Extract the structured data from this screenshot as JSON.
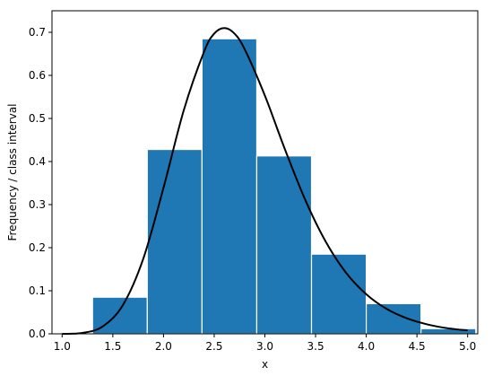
{
  "chart_data": {
    "type": "bar",
    "title": "",
    "xlabel": "x",
    "ylabel": "Frequency / class interval",
    "xlim": [
      0.9,
      5.1
    ],
    "ylim": [
      0.0,
      0.75
    ],
    "grid": false,
    "bar_color": "#1f77b4",
    "bar_edge_color": "#ffffff",
    "curve_color": "#000000",
    "xticks": [
      1.0,
      1.5,
      2.0,
      2.5,
      3.0,
      3.5,
      4.0,
      4.5,
      5.0
    ],
    "xtick_labels": [
      "1.0",
      "1.5",
      "2.0",
      "2.5",
      "3.0",
      "3.5",
      "4.0",
      "4.5",
      "5.0"
    ],
    "yticks": [
      0.0,
      0.1,
      0.2,
      0.3,
      0.4,
      0.5,
      0.6,
      0.7
    ],
    "ytick_labels": [
      "0.0",
      "0.1",
      "0.2",
      "0.3",
      "0.4",
      "0.5",
      "0.6",
      "0.7"
    ],
    "bins": [
      {
        "x0": 1.3,
        "x1": 1.84,
        "value": 0.085
      },
      {
        "x0": 1.84,
        "x1": 2.38,
        "value": 0.428
      },
      {
        "x0": 2.38,
        "x1": 2.92,
        "value": 0.685
      },
      {
        "x0": 2.92,
        "x1": 3.46,
        "value": 0.413
      },
      {
        "x0": 3.46,
        "x1": 4.0,
        "value": 0.185
      },
      {
        "x0": 4.0,
        "x1": 4.54,
        "value": 0.07
      },
      {
        "x0": 4.54,
        "x1": 5.08,
        "value": 0.012
      }
    ],
    "curve": {
      "x": [
        1.0,
        1.2,
        1.4,
        1.6,
        1.8,
        2.0,
        2.2,
        2.4,
        2.5,
        2.6,
        2.7,
        2.8,
        3.0,
        3.2,
        3.4,
        3.6,
        3.8,
        4.0,
        4.2,
        4.4,
        4.6,
        4.8,
        5.0
      ],
      "y": [
        0.0,
        0.002,
        0.017,
        0.067,
        0.174,
        0.339,
        0.519,
        0.655,
        0.697,
        0.71,
        0.697,
        0.661,
        0.553,
        0.427,
        0.31,
        0.214,
        0.142,
        0.092,
        0.058,
        0.036,
        0.022,
        0.013,
        0.008
      ]
    }
  }
}
